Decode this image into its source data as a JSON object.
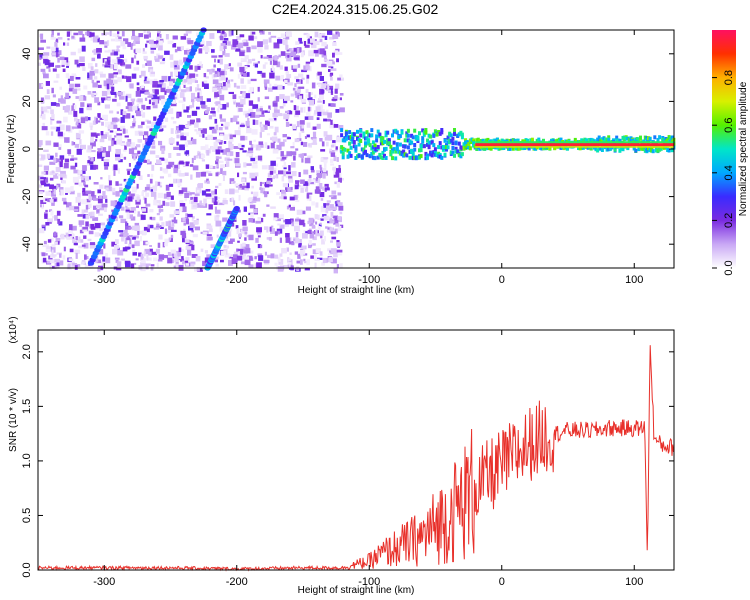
{
  "title": "C2E4.2024.315.06.25.G02",
  "chart_data": [
    {
      "type": "heatmap",
      "xlabel": "Height of straight line (km)",
      "ylabel": "Frequency (Hz)",
      "xlim": [
        -350,
        130
      ],
      "ylim": [
        -50,
        50
      ],
      "xticks": [
        -300,
        -200,
        -100,
        0,
        100
      ],
      "yticks": [
        -40,
        -20,
        0,
        20,
        40
      ],
      "colorbar": {
        "label": "Normalized spectral amplitude",
        "range": [
          0,
          1
        ],
        "ticks": [
          "0.0",
          "0.2",
          "0.4",
          "0.6",
          "0.8"
        ],
        "colormap": [
          "#ffffff",
          "#c9a8f5",
          "#7a2be0",
          "#3a2bff",
          "#00a8ff",
          "#00e6c8",
          "#55f000",
          "#d8f000",
          "#ffb000",
          "#ff3000",
          "#ff1060"
        ]
      },
      "features": {
        "noise_region_x": [
          -350,
          -122
        ],
        "central_line_freq_hz": 2,
        "diagonal_tracks": [
          {
            "x_start": -310,
            "y_start": -48,
            "x_end": -225,
            "y_end": 50
          },
          {
            "x_start": -222,
            "y_start": -50,
            "x_end": -200,
            "y_end": -25
          }
        ]
      }
    },
    {
      "type": "line",
      "xlabel": "Height of straight line (km)",
      "ylabel": "SNR (10 * v/v)",
      "yscale_label": "(x10⁴)",
      "xlim": [
        -350,
        130
      ],
      "ylim": [
        0,
        2.2
      ],
      "xticks": [
        -300,
        -200,
        -100,
        0,
        100
      ],
      "yticks": [
        "0.0",
        "0.5",
        "1.0",
        "1.5",
        "2.0"
      ],
      "series": [
        {
          "color": "#e8302a",
          "x": [
            -350,
            -300,
            -250,
            -200,
            -150,
            -120,
            -100,
            -90,
            -80,
            -70,
            -60,
            -50,
            -40,
            -30,
            -20,
            -10,
            0,
            10,
            20,
            30,
            40,
            50,
            60,
            70,
            80,
            90,
            100,
            108,
            110,
            112,
            115,
            120,
            130
          ],
          "y": [
            0.02,
            0.02,
            0.02,
            0.01,
            0.02,
            0.02,
            0.08,
            0.15,
            0.2,
            0.25,
            0.3,
            0.4,
            0.5,
            0.6,
            0.75,
            0.85,
            0.95,
            1.05,
            1.15,
            1.22,
            1.25,
            1.28,
            1.28,
            1.28,
            1.3,
            1.3,
            1.3,
            1.3,
            0.1,
            2.1,
            1.2,
            1.15,
            1.12
          ]
        }
      ]
    }
  ]
}
